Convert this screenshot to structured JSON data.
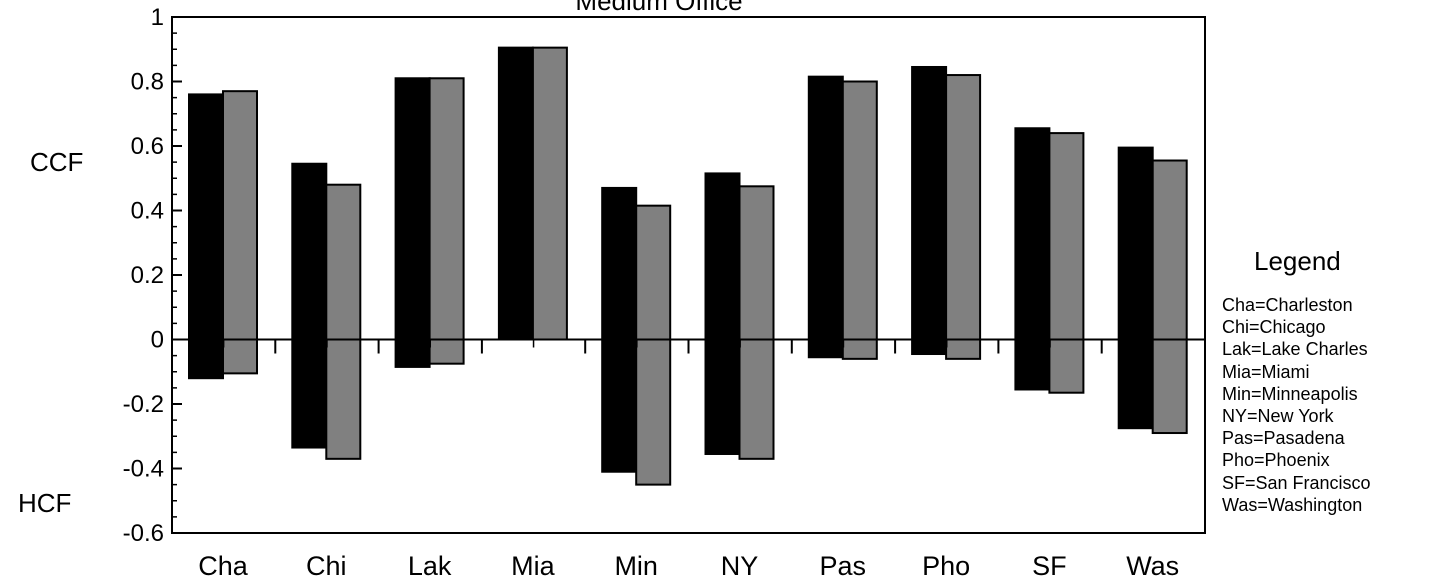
{
  "chart_data": {
    "type": "bar",
    "title": "Medium Office",
    "categories": [
      "Cha",
      "Chi",
      "Lak",
      "Mia",
      "Min",
      "NY",
      "Pas",
      "Pho",
      "SF",
      "Was"
    ],
    "series": [
      {
        "color": "#000000",
        "ccf": [
          0.76,
          0.545,
          0.81,
          0.905,
          0.47,
          0.515,
          0.815,
          0.845,
          0.655,
          0.595
        ],
        "hcf": [
          -0.12,
          -0.335,
          -0.085,
          0,
          -0.41,
          -0.355,
          -0.055,
          -0.045,
          -0.155,
          -0.275
        ]
      },
      {
        "color": "#808080",
        "ccf": [
          0.77,
          0.48,
          0.81,
          0.905,
          0.415,
          0.475,
          0.8,
          0.82,
          0.64,
          0.555
        ],
        "hcf": [
          -0.105,
          -0.37,
          -0.075,
          0,
          -0.45,
          -0.37,
          -0.06,
          -0.06,
          -0.165,
          -0.29
        ]
      }
    ],
    "ylim": [
      -0.6,
      1
    ],
    "yticks": [
      "-0.6",
      "-0.4",
      "-0.2",
      "0",
      "0.2",
      "0.4",
      "0.6",
      "0.8",
      "1"
    ],
    "ylabel_top": "CCF",
    "ylabel_bottom": "HCF",
    "grid": false,
    "legend_position": "right"
  },
  "legend": {
    "title": "Legend",
    "entries": [
      "Cha=Charleston",
      "Chi=Chicago",
      "Lak=Lake Charles",
      "Mia=Miami",
      "Min=Minneapolis",
      "NY=New York",
      "Pas=Pasadena",
      "Pho=Phoenix",
      "SF=San Francisco",
      "Was=Washington"
    ]
  }
}
